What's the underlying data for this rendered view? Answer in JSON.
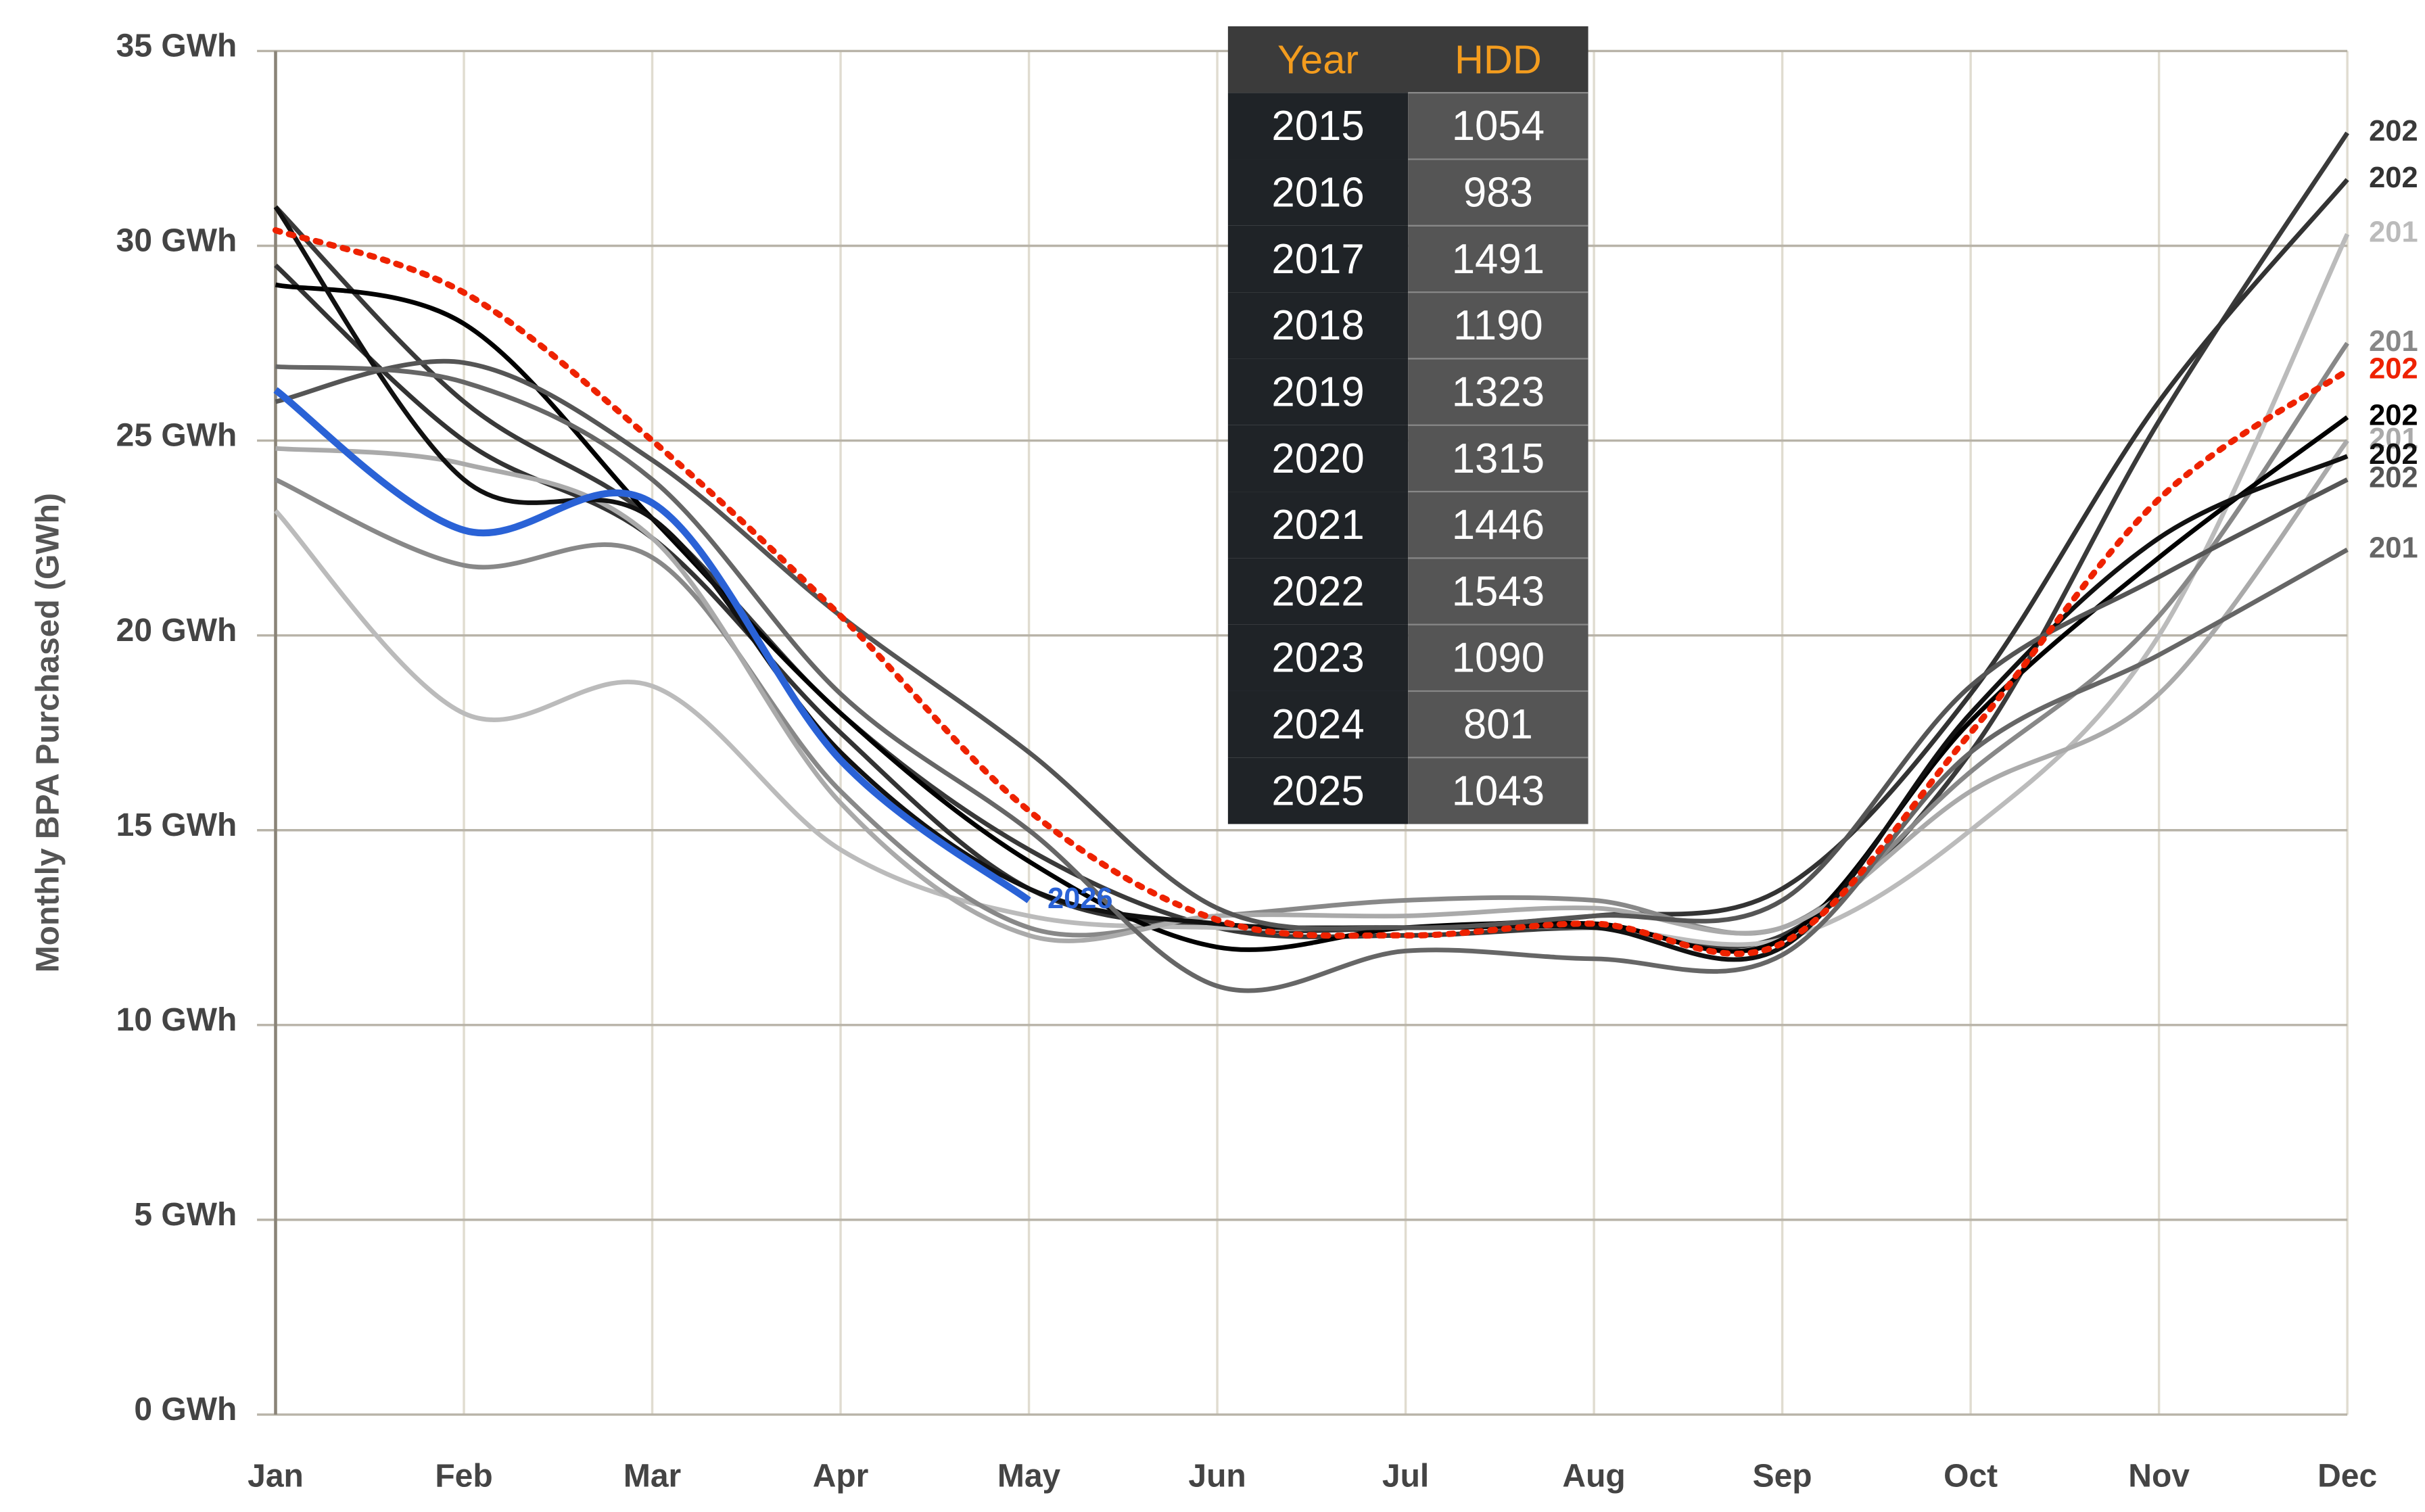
{
  "chart_data": {
    "type": "line",
    "y_label": "Monthly BPA Purchased (GWh)",
    "categories": [
      "Jan",
      "Feb",
      "Mar",
      "Apr",
      "May",
      "Jun",
      "Jul",
      "Aug",
      "Sep",
      "Oct",
      "Nov",
      "Dec"
    ],
    "ylim": [
      0,
      35
    ],
    "yticks": [
      {
        "value": 0,
        "label": "0 GWh"
      },
      {
        "value": 5,
        "label": "5 GWh"
      },
      {
        "value": 10,
        "label": "10 GWh"
      },
      {
        "value": 15,
        "label": "15 GWh"
      },
      {
        "value": 20,
        "label": "20 GWh"
      },
      {
        "value": 25,
        "label": "25 GWh"
      },
      {
        "value": 30,
        "label": "30 GWh"
      },
      {
        "value": 35,
        "label": "35 GWh"
      }
    ],
    "grid": true,
    "series": [
      {
        "end_label": "202",
        "color": "#3a3a3a",
        "values": [
          31,
          26,
          23,
          18,
          14.5,
          12.5,
          12.3,
          12.5,
          12.3,
          17,
          25.5,
          32.9
        ]
      },
      {
        "end_label": "202",
        "color": "#333333",
        "values": [
          29.5,
          25,
          22.5,
          17.5,
          13.5,
          12.5,
          12.5,
          12.8,
          13.5,
          18.5,
          26,
          31.7
        ]
      },
      {
        "end_label": "201",
        "color": "#bbbbbb",
        "values": [
          23.2,
          18,
          18.7,
          14.5,
          12.8,
          12.5,
          12.5,
          12.5,
          12.2,
          15,
          20,
          30.3
        ]
      },
      {
        "end_label": "201",
        "color": "#888888",
        "values": [
          24,
          21.8,
          22,
          16,
          12.5,
          12.8,
          13.2,
          13.2,
          12.5,
          16.5,
          20.5,
          27.5
        ]
      },
      {
        "end_label": "202",
        "color": "#000000",
        "values": [
          29,
          28,
          23,
          18,
          14.2,
          12,
          12.5,
          12.6,
          12.2,
          17.8,
          22,
          25.6
        ]
      },
      {
        "end_label": "201",
        "color": "#aaaaaa",
        "values": [
          24.8,
          24.4,
          22.5,
          15.7,
          12.3,
          12.8,
          12.8,
          13,
          12.5,
          16,
          18.5,
          25
        ]
      },
      {
        "end_label": "202",
        "color": "#111111",
        "values": [
          31,
          24,
          23,
          17,
          13.5,
          12.6,
          12.5,
          12.5,
          12,
          18,
          22.5,
          24.6
        ]
      },
      {
        "end_label": "202",
        "color": "#555555",
        "values": [
          26,
          27,
          24.5,
          20.5,
          17,
          13,
          12.5,
          12.8,
          13.2,
          18.7,
          21.5,
          24
        ]
      },
      {
        "end_label": "201",
        "color": "#666666",
        "values": [
          26.9,
          26.5,
          24,
          18.5,
          15,
          11,
          11.9,
          11.7,
          11.8,
          17,
          19.5,
          22.2
        ]
      },
      {
        "end_label": "202",
        "color": "#ee2200",
        "dotted": true,
        "values": [
          30.4,
          28.8,
          25,
          20.5,
          15.5,
          12.7,
          12.3,
          12.6,
          12.1,
          17.5,
          23.5,
          26.8
        ]
      },
      {
        "name": "2026",
        "color": "#2a62d6",
        "values": [
          26.3,
          22.7,
          23.4,
          16.8,
          13.2,
          null,
          null,
          null,
          null,
          null,
          null,
          null
        ]
      }
    ]
  },
  "table": {
    "header": [
      "Year",
      "HDD"
    ],
    "rows": [
      [
        "2015",
        "1054"
      ],
      [
        "2016",
        "983"
      ],
      [
        "2017",
        "1491"
      ],
      [
        "2018",
        "1190"
      ],
      [
        "2019",
        "1323"
      ],
      [
        "2020",
        "1315"
      ],
      [
        "2021",
        "1446"
      ],
      [
        "2022",
        "1543"
      ],
      [
        "2023",
        "1090"
      ],
      [
        "2024",
        "801"
      ],
      [
        "2025",
        "1043"
      ]
    ]
  }
}
